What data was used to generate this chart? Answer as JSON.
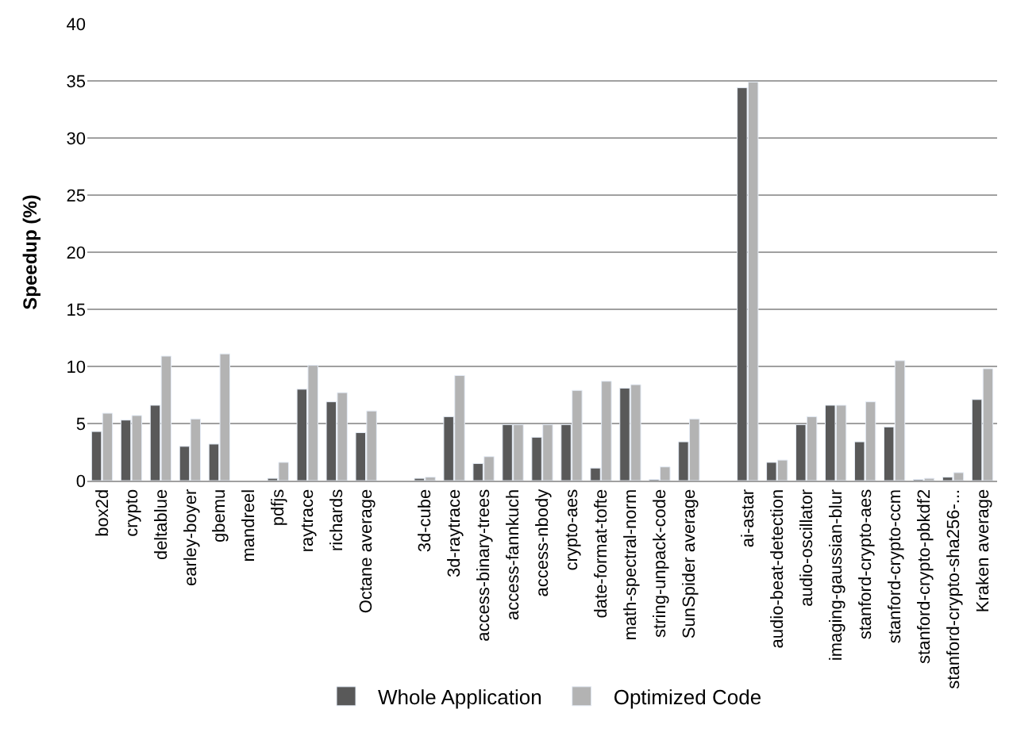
{
  "chart_data": {
    "type": "bar",
    "ylabel": "Speedup (%)",
    "categories": [
      "box2d",
      "crypto",
      "deltablue",
      "earley-boyer",
      "gbemu",
      "mandreel",
      "pdfjs",
      "raytrace",
      "richards",
      "Octane average",
      null,
      "3d-cube",
      "3d-raytrace",
      "access-binary-trees",
      "access-fannkuch",
      "access-nbody",
      "crypto-aes",
      "date-format-tofte",
      "math-spectral-norm",
      "string-unpack-code",
      "SunSpider average",
      null,
      "ai-astar",
      "audio-beat-detection",
      "audio-oscillator",
      "imaging-gaussian-blur",
      "stanford-crypto-aes",
      "stanford-crypto-ccm",
      "stanford-crypto-pbkdf2",
      "stanford-crypto-sha256-...",
      "Kraken average"
    ],
    "series": [
      {
        "name": "Whole Application",
        "color": "#595959",
        "values": [
          4.3,
          5.3,
          6.6,
          3.0,
          3.2,
          null,
          0.2,
          8.0,
          6.9,
          4.2,
          null,
          0.2,
          5.6,
          1.5,
          4.9,
          3.8,
          4.9,
          1.1,
          8.1,
          0.1,
          3.4,
          null,
          34.4,
          1.6,
          4.9,
          6.6,
          3.4,
          4.7,
          0.1,
          0.3,
          7.1
        ]
      },
      {
        "name": "Optimized Code",
        "color": "#b3b3b3",
        "values": [
          5.9,
          5.7,
          10.9,
          5.4,
          11.1,
          null,
          1.6,
          10.1,
          7.7,
          6.1,
          null,
          0.3,
          9.2,
          2.1,
          4.9,
          4.9,
          7.9,
          8.7,
          8.4,
          1.2,
          5.4,
          null,
          34.9,
          1.8,
          5.6,
          6.6,
          6.9,
          10.5,
          0.2,
          0.7,
          9.8
        ]
      }
    ],
    "ylim": [
      0,
      40
    ],
    "yticks": [
      0,
      5,
      10,
      15,
      20,
      25,
      30,
      35,
      40
    ],
    "grid": "y",
    "legend": "bottom"
  }
}
